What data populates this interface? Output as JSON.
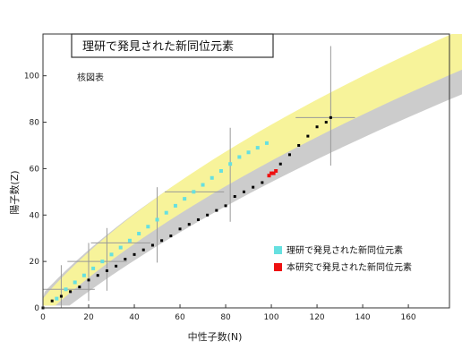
{
  "chart_data": {
    "type": "scatter",
    "title": "理研で発見された新同位元素",
    "subtitle": "核図表",
    "xlabel": "中性子数(N)",
    "ylabel": "陽子数(Z)",
    "xlim": [
      0,
      178
    ],
    "ylim": [
      0,
      118
    ],
    "x_ticks": [
      0,
      20,
      40,
      60,
      80,
      100,
      120,
      140,
      160
    ],
    "y_ticks": [
      0,
      20,
      40,
      60,
      80,
      100
    ],
    "grid": false,
    "legend_position": "bottom-right",
    "colors": {
      "predicted_region": "#f7f39a",
      "known_nuclides": "#cccccc",
      "stable": "#000000",
      "riken_new": "#66e0e0",
      "this_study_new": "#ee1111",
      "magic_lines": "#999999"
    },
    "series": [
      {
        "name": "理研で発見された新同位元素",
        "color_key": "riken_new",
        "x": [
          6,
          10,
          14,
          18,
          22,
          26,
          30,
          34,
          38,
          42,
          46,
          50,
          54,
          58,
          62,
          66,
          70,
          74,
          78,
          82,
          86,
          90,
          94,
          98
        ],
        "y": [
          4,
          8,
          11,
          14,
          17,
          20,
          23,
          26,
          29,
          32,
          35,
          38,
          41,
          44,
          47,
          50,
          53,
          56,
          59,
          62,
          65,
          67,
          69,
          71
        ]
      },
      {
        "name": "本研究で発見された新同位元素",
        "color_key": "this_study_new",
        "x": [
          99,
          100,
          101,
          102
        ],
        "y": [
          57,
          58,
          58,
          59
        ]
      }
    ],
    "stable_line": {
      "x": [
        0,
        4,
        8,
        12,
        16,
        20,
        24,
        28,
        32,
        36,
        40,
        44,
        48,
        52,
        56,
        60,
        64,
        68,
        72,
        76,
        80,
        84,
        88,
        92,
        96,
        100,
        104,
        108,
        112,
        116,
        120,
        124,
        126
      ],
      "y": [
        0,
        3,
        5,
        7,
        9,
        12,
        14,
        16,
        18,
        21,
        23,
        25,
        27,
        29,
        31,
        34,
        36,
        38,
        40,
        42,
        44,
        48,
        50,
        52,
        54,
        58,
        62,
        66,
        70,
        74,
        78,
        80,
        82
      ]
    },
    "magic_numbers": [
      8,
      20,
      28,
      50,
      82,
      126
    ],
    "legend": [
      "理研で発見された新同位元素",
      "本研究で発見された新同位元素"
    ]
  }
}
